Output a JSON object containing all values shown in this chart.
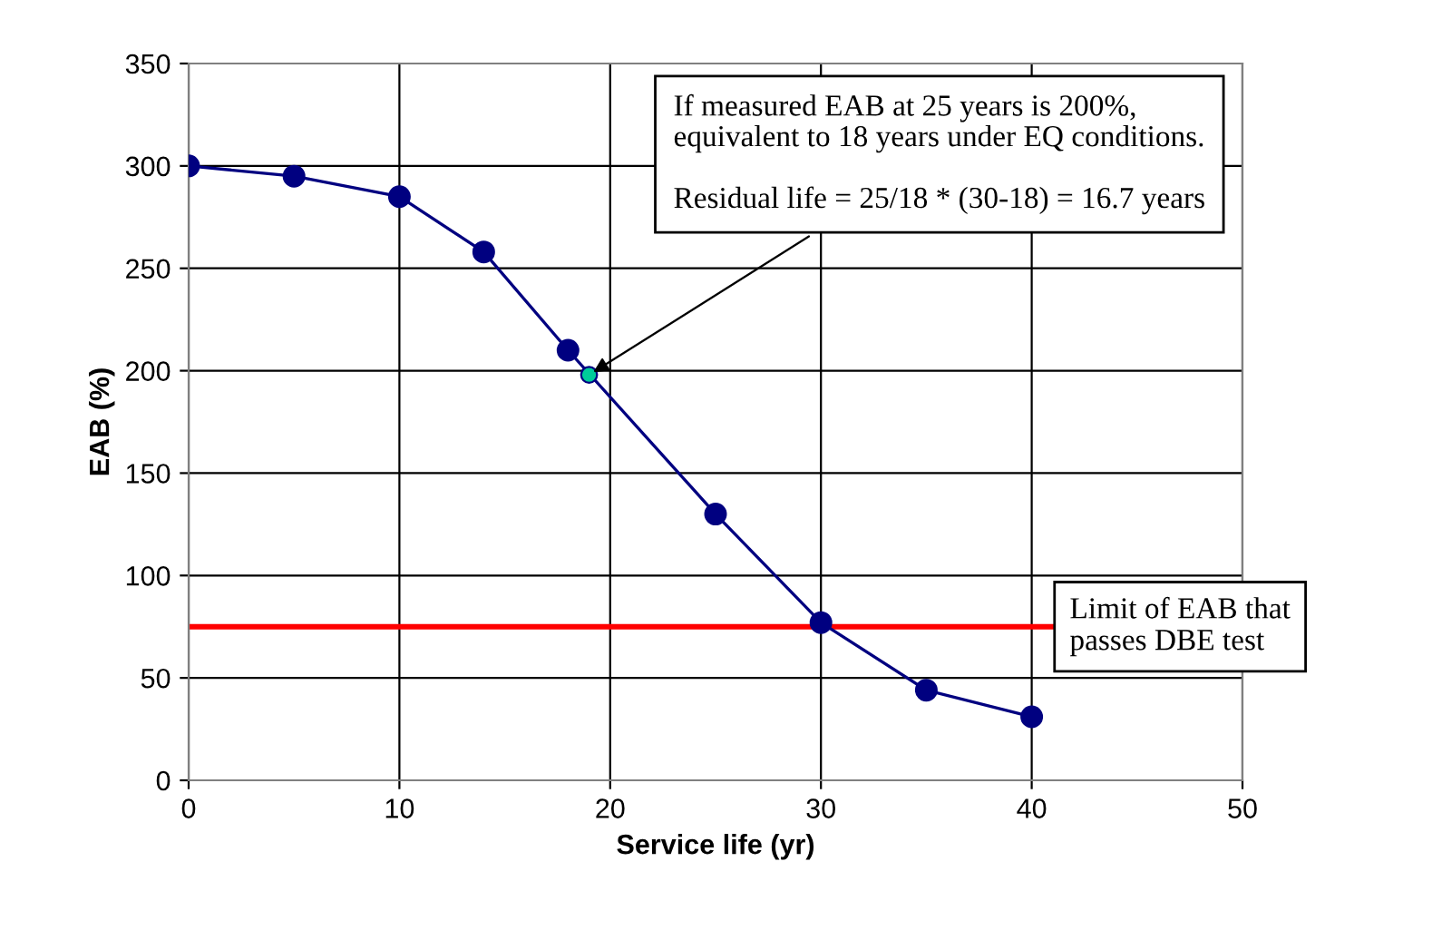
{
  "chart_data": {
    "type": "line",
    "xlabel": "Service life (yr)",
    "ylabel": "EAB (%)",
    "series": [
      {
        "color": "#000080",
        "marker": "circle",
        "x": [
          0,
          5,
          10,
          14,
          18,
          25,
          30,
          35,
          40
        ],
        "values": [
          300,
          295,
          285,
          258,
          210,
          130,
          77,
          44,
          31
        ]
      },
      {
        "type": "scatter",
        "color": "#00cc99",
        "marker": "circle",
        "x": [
          19
        ],
        "values": [
          198
        ]
      }
    ],
    "xlim": [
      0,
      50
    ],
    "xticks": [
      0,
      10,
      20,
      30,
      40,
      50
    ],
    "ylim": [
      0,
      350
    ],
    "yticks": [
      0,
      50,
      100,
      150,
      200,
      250,
      300,
      350
    ],
    "grid": true,
    "ref_lines": [
      {
        "axis": "y",
        "value": 75,
        "label": "Limit of EAB that\npasses DBE test",
        "color": "#ff0000",
        "line_style": "solid"
      }
    ],
    "annotations": [
      {
        "text": "If measured EAB at 25 years is 200%,\nequivalent to 18 years under EQ conditions.\n\nResidual life = 25/18 * (30-18) = 16.7 years",
        "x": 19,
        "y": 198
      }
    ]
  }
}
